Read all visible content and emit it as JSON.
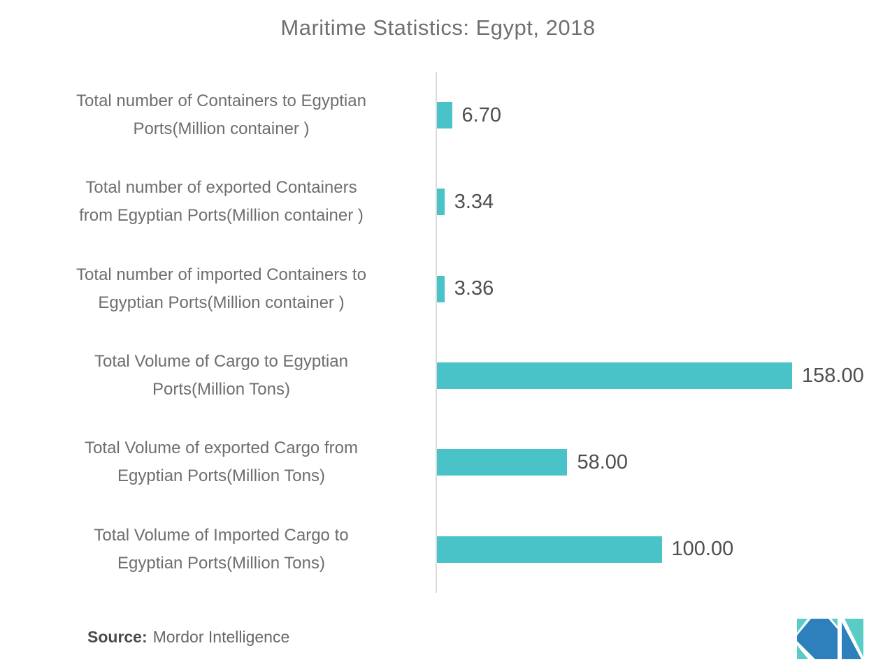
{
  "title": "Maritime Statistics: Egypt, 2018",
  "chart_data": {
    "type": "bar",
    "orientation": "horizontal",
    "title": "Maritime Statistics: Egypt, 2018",
    "categories": [
      "Total number of Containers to Egyptian\nPorts(Million container )",
      "Total number of exported Containers\nfrom Egyptian Ports(Million container )",
      "Total number of imported Containers to\nEgyptian Ports(Million container )",
      "Total Volume of Cargo to Egyptian\nPorts(Million Tons)",
      "Total Volume of exported Cargo from\nEgyptian Ports(Million Tons)",
      "Total Volume of Imported Cargo to\nEgyptian Ports(Million Tons)"
    ],
    "values": [
      6.7,
      3.34,
      3.36,
      158,
      58,
      100
    ],
    "value_labels": [
      "6.70",
      "3.34",
      "3.36",
      "158.00",
      "58.00",
      "100.00"
    ],
    "xlim": [
      0,
      165
    ],
    "grid": false,
    "legend": "none",
    "bar_color": "#49c3c8",
    "axis_line_color": "#dcdcdc"
  },
  "source": {
    "label": "Source:",
    "text": "Mordor Intelligence"
  },
  "logo": {
    "name": "Mordor Intelligence logo mark",
    "blue": "#2e80bd",
    "teal": "#58ccc5"
  },
  "colors": {
    "background": "#ffffff",
    "title_text": "#6f6f6f",
    "category_text": "#6e6e6e",
    "value_text": "#4f4f4f"
  }
}
